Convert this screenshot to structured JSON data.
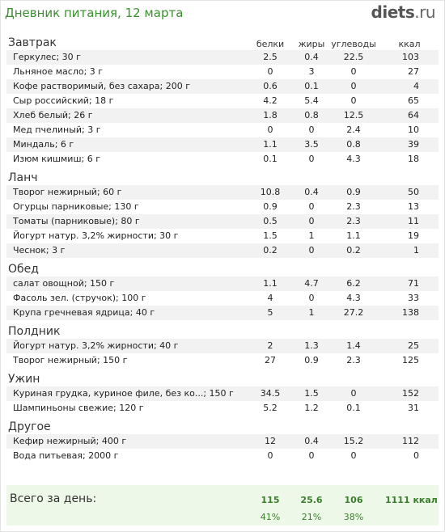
{
  "header": {
    "title": "Дневник питания, 12 марта",
    "logo_main": "diets",
    "logo_tld": ".ru"
  },
  "columns": {
    "protein": "белки",
    "fat": "жиры",
    "carbs": "углеводы",
    "kcal": "ккал"
  },
  "sections": [
    {
      "title": "Завтрак",
      "rows": [
        {
          "name": "Геркулес; 30 г",
          "protein": "2.5",
          "fat": "0.4",
          "carbs": "22.5",
          "kcal": "103"
        },
        {
          "name": "Льняное масло; 3 г",
          "protein": "0",
          "fat": "3",
          "carbs": "0",
          "kcal": "27"
        },
        {
          "name": "Кофе растворимый, без сахара; 200 г",
          "protein": "0.6",
          "fat": "0.1",
          "carbs": "0",
          "kcal": "4"
        },
        {
          "name": "Сыр российский; 18 г",
          "protein": "4.2",
          "fat": "5.4",
          "carbs": "0",
          "kcal": "65"
        },
        {
          "name": "Хлеб белый; 26 г",
          "protein": "1.8",
          "fat": "0.8",
          "carbs": "12.5",
          "kcal": "64"
        },
        {
          "name": "Мед пчелиный; 3 г",
          "protein": "0",
          "fat": "0",
          "carbs": "2.4",
          "kcal": "10"
        },
        {
          "name": "Миндаль; 6 г",
          "protein": "1.1",
          "fat": "3.5",
          "carbs": "0.8",
          "kcal": "39"
        },
        {
          "name": "Изюм кишмиш; 6 г",
          "protein": "0.1",
          "fat": "0",
          "carbs": "4.3",
          "kcal": "18"
        }
      ]
    },
    {
      "title": "Ланч",
      "rows": [
        {
          "name": "Творог нежирный; 60 г",
          "protein": "10.8",
          "fat": "0.4",
          "carbs": "0.9",
          "kcal": "50"
        },
        {
          "name": "Огурцы парниковые; 130 г",
          "protein": "0.9",
          "fat": "0",
          "carbs": "2.3",
          "kcal": "13"
        },
        {
          "name": "Томаты (парниковые); 80 г",
          "protein": "0.5",
          "fat": "0",
          "carbs": "2.3",
          "kcal": "11"
        },
        {
          "name": "Йогурт натур. 3,2% жирности; 30 г",
          "protein": "1.5",
          "fat": "1",
          "carbs": "1.1",
          "kcal": "19"
        },
        {
          "name": "Чеснок; 3 г",
          "protein": "0.2",
          "fat": "0",
          "carbs": "0.2",
          "kcal": "1"
        }
      ]
    },
    {
      "title": "Обед",
      "rows": [
        {
          "name": "салат овощной; 150 г",
          "protein": "1.1",
          "fat": "4.7",
          "carbs": "6.2",
          "kcal": "71"
        },
        {
          "name": "Фасоль зел. (стручок); 100 г",
          "protein": "4",
          "fat": "0",
          "carbs": "4.3",
          "kcal": "33"
        },
        {
          "name": "Крупа гречневая ядрица; 40 г",
          "protein": "5",
          "fat": "1",
          "carbs": "27.2",
          "kcal": "138"
        }
      ]
    },
    {
      "title": "Полдник",
      "rows": [
        {
          "name": "Йогурт натур. 3,2% жирности; 40 г",
          "protein": "2",
          "fat": "1.3",
          "carbs": "1.4",
          "kcal": "25"
        },
        {
          "name": "Творог нежирный; 150 г",
          "protein": "27",
          "fat": "0.9",
          "carbs": "2.3",
          "kcal": "125"
        }
      ]
    },
    {
      "title": "Ужин",
      "rows": [
        {
          "name": "Куриная грудка, куриное филе, без ко...; 150 г",
          "protein": "34.5",
          "fat": "1.5",
          "carbs": "0",
          "kcal": "152"
        },
        {
          "name": "Шампиньоны свежие; 120 г",
          "protein": "5.2",
          "fat": "1.2",
          "carbs": "0.1",
          "kcal": "31"
        }
      ]
    },
    {
      "title": "Другое",
      "rows": [
        {
          "name": "Кефир нежирный; 400 г",
          "protein": "12",
          "fat": "0.4",
          "carbs": "15.2",
          "kcal": "112"
        },
        {
          "name": "Вода питьевая; 2000 г",
          "protein": "0",
          "fat": "0",
          "carbs": "0",
          "kcal": "0"
        }
      ]
    }
  ],
  "totals": {
    "label": "Всего за день:",
    "protein": "115",
    "fat": "25.6",
    "carbs": "106",
    "kcal": "1111 ккал",
    "protein_pct": "41%",
    "fat_pct": "21%",
    "carbs_pct": "38%"
  }
}
